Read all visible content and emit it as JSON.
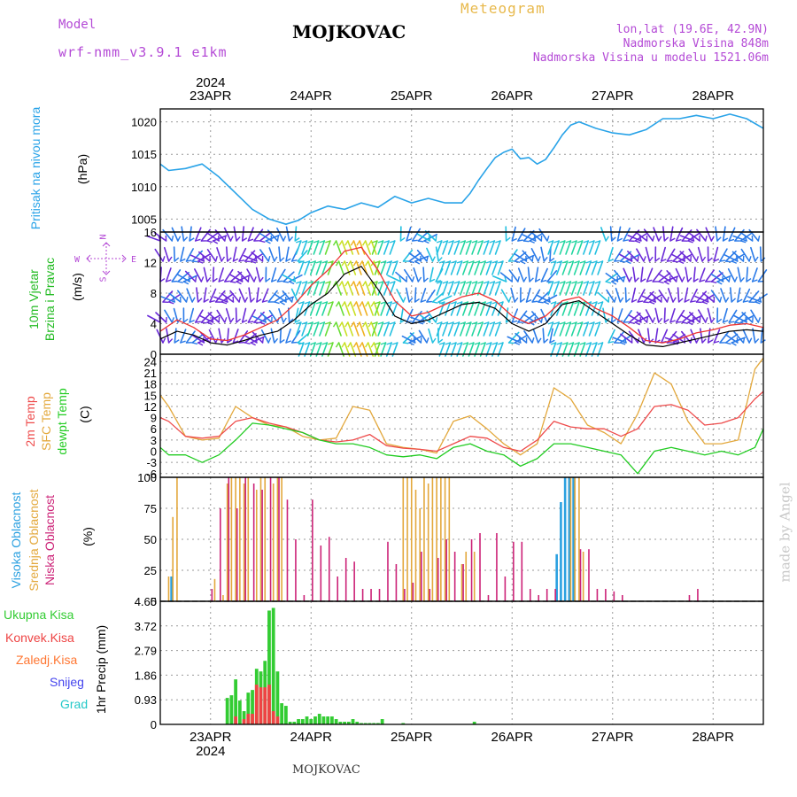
{
  "header": {
    "model_label": "Model",
    "model_name": "wrf-nmm_v3.9.1 e1km",
    "location": "MOJKOVAC",
    "product": "Meteogram",
    "lonlat": "lon,lat (19.6E, 42.9N)",
    "elevation": "Nadmorska Visina 848m",
    "model_elevation": "Nadmorska Visina u modelu 1521.06m"
  },
  "time_axis": {
    "year": "2024",
    "day_labels": [
      "23APR",
      "24APR",
      "25APR",
      "26APR",
      "27APR",
      "28APR"
    ],
    "start": "2024-04-22T12:00",
    "end": "2024-04-28T12:00"
  },
  "panel_labels": {
    "pressure": "Pritisak na nivou mora",
    "pressure_unit": "(hPa)",
    "wind_line1": "10m Vjetar",
    "wind_line2": "Brzina i Pravac",
    "wind_unit": "(m/s)",
    "compass": {
      "n": "N",
      "s": "S",
      "e": "E",
      "w": "W"
    },
    "temp_2m": "2m Temp",
    "temp_sfc": "SFC Temp",
    "temp_dew": "dewpt Temp",
    "temp_unit": "(C)",
    "cloud_high": "Visoka Oblacnost",
    "cloud_mid": "Srednja Oblacnost",
    "cloud_low": "Niska Oblacnost",
    "cloud_unit": "(%)",
    "precip_unit": "1hr Precip (mm)",
    "precip_legend": [
      "Ukupna Kisa",
      "Konvek.Kisa",
      "Zaledj.Kisa",
      "Snijeg",
      "Grad"
    ]
  },
  "credit": "made by Angel",
  "footer_location": "MOJKOVAC",
  "colors": {
    "pressure": "#29a3e8",
    "temp_2m": "#ee4a4a",
    "temp_sfc": "#e3a83c",
    "temp_dew": "#22cc22",
    "wind_speed": "#000000",
    "gust": "#ee3333",
    "cloud_high": "#2aa0e0",
    "cloud_mid": "#e3a83c",
    "cloud_low": "#cc2277",
    "precip_total": "#33cc33",
    "precip_conv": "#ee4444",
    "precip_freezing": "#ff7733",
    "precip_snow": "#4444ee",
    "precip_hail": "#22c8c8",
    "label_pressure": "#29a3e8",
    "label_wind": "#22bb22",
    "label_violet": "#b44ad6"
  },
  "chart_data": [
    {
      "type": "line",
      "name": "pressure",
      "ylabel": "(hPa)",
      "ylim": [
        1003,
        1022
      ],
      "yticks": [
        1005,
        1010,
        1015,
        1020
      ],
      "grid": true,
      "series": [
        {
          "name": "Pritisak na nivou mora",
          "x_hours": [
            0,
            2,
            6,
            10,
            14,
            18,
            22,
            26,
            30,
            33,
            36,
            40,
            44,
            48,
            52,
            56,
            60,
            64,
            68,
            72,
            74,
            76,
            78,
            80,
            82,
            84,
            86,
            88,
            90,
            92,
            94,
            96,
            98,
            100,
            102,
            104,
            108,
            112,
            116,
            120,
            124,
            128,
            132,
            136,
            140,
            144
          ],
          "values": [
            1013.5,
            1012.5,
            1012.8,
            1013.5,
            1011.5,
            1009,
            1006.5,
            1005,
            1004.2,
            1004.8,
            1006,
            1007,
            1006.5,
            1007.5,
            1006.8,
            1008.5,
            1007.5,
            1008.2,
            1007.5,
            1007.5,
            1009,
            1011,
            1012.8,
            1014.5,
            1015.3,
            1015.8,
            1014.3,
            1014.5,
            1013.5,
            1014.2,
            1016,
            1018,
            1019.5,
            1020,
            1019.5,
            1019,
            1018.3,
            1018,
            1018.8,
            1020.5,
            1020.5,
            1021,
            1020.5,
            1021.2,
            1020.5,
            1019
          ]
        }
      ]
    },
    {
      "type": "line",
      "name": "wind",
      "ylabel": "(m/s)",
      "ylim": [
        0,
        16
      ],
      "yticks": [
        0,
        4,
        8,
        12,
        16
      ],
      "grid": true,
      "series": [
        {
          "name": "speed",
          "x_hours": [
            0,
            4,
            8,
            12,
            16,
            20,
            24,
            28,
            32,
            36,
            40,
            44,
            48,
            52,
            56,
            60,
            64,
            68,
            72,
            76,
            80,
            84,
            88,
            92,
            96,
            100,
            104,
            108,
            112,
            116,
            120,
            124,
            128,
            132,
            136,
            140,
            144
          ],
          "values": [
            2,
            3,
            2.5,
            1.5,
            1.2,
            1.8,
            2.5,
            3,
            4.5,
            6.5,
            8,
            10.5,
            11.5,
            8.5,
            5,
            4,
            4.5,
            5.5,
            6.5,
            6.8,
            6,
            4,
            3,
            4,
            6.5,
            7,
            5.5,
            4,
            2.5,
            1.2,
            1,
            1.5,
            2,
            2.5,
            3,
            3.2,
            3
          ]
        },
        {
          "name": "gust",
          "x_hours": [
            0,
            4,
            8,
            12,
            16,
            20,
            24,
            28,
            32,
            36,
            40,
            44,
            48,
            52,
            56,
            60,
            64,
            68,
            72,
            76,
            80,
            84,
            88,
            92,
            96,
            100,
            104,
            108,
            112,
            116,
            120,
            124,
            128,
            132,
            136,
            140,
            144
          ],
          "values": [
            3,
            4.5,
            3.5,
            2,
            1.8,
            2.5,
            3.5,
            4.5,
            6.5,
            9,
            11,
            13.5,
            14,
            11,
            7,
            5,
            5.5,
            6.5,
            7.5,
            8,
            7,
            5,
            4,
            5,
            7,
            7.5,
            6,
            5,
            3.5,
            1.8,
            1.5,
            2,
            2.8,
            3.2,
            3.8,
            4,
            3.5
          ]
        }
      ]
    },
    {
      "type": "line",
      "name": "temperature",
      "ylabel": "(C)",
      "ylim": [
        -7,
        26
      ],
      "yticks": [
        -6,
        -3,
        0,
        3,
        6,
        9,
        12,
        15,
        18,
        21,
        24
      ],
      "grid": true,
      "series": [
        {
          "name": "2m Temp",
          "x_hours": [
            0,
            2,
            6,
            10,
            14,
            18,
            22,
            26,
            30,
            34,
            38,
            42,
            46,
            50,
            54,
            58,
            62,
            66,
            70,
            74,
            78,
            82,
            86,
            90,
            94,
            98,
            102,
            106,
            110,
            114,
            118,
            122,
            126,
            130,
            134,
            138,
            142,
            144
          ],
          "values": [
            9,
            8,
            4,
            3.5,
            4,
            8,
            9,
            7.5,
            6.5,
            5,
            3,
            2.5,
            3,
            4.5,
            1.5,
            0.8,
            0.5,
            0,
            2,
            4,
            3.5,
            1,
            0,
            3,
            8,
            6.5,
            6,
            6,
            4,
            6,
            12,
            12.5,
            11,
            7,
            7.5,
            9,
            14,
            16
          ]
        },
        {
          "name": "SFC Temp",
          "x_hours": [
            0,
            2,
            6,
            10,
            14,
            18,
            22,
            26,
            30,
            34,
            38,
            42,
            46,
            50,
            54,
            58,
            62,
            66,
            70,
            74,
            78,
            82,
            86,
            90,
            94,
            98,
            102,
            106,
            110,
            114,
            118,
            122,
            126,
            130,
            134,
            138,
            142,
            144
          ],
          "values": [
            15,
            12,
            4,
            3,
            3.5,
            12,
            9,
            7,
            6.5,
            4,
            3,
            3.5,
            12,
            11,
            2,
            1,
            0.5,
            -0.5,
            8,
            9.5,
            6,
            2,
            -1,
            2,
            17,
            14,
            7,
            5,
            2,
            10,
            21,
            18,
            8,
            2,
            2,
            3,
            22,
            25
          ]
        },
        {
          "name": "dewpt Temp",
          "x_hours": [
            0,
            2,
            6,
            10,
            14,
            18,
            22,
            26,
            30,
            34,
            38,
            42,
            46,
            50,
            54,
            58,
            62,
            66,
            70,
            74,
            78,
            82,
            86,
            90,
            94,
            98,
            102,
            106,
            110,
            114,
            118,
            122,
            126,
            130,
            134,
            138,
            142,
            144
          ],
          "values": [
            1,
            -1,
            -1,
            -3,
            -1,
            3,
            7.5,
            7,
            6,
            5,
            3,
            2,
            2,
            1,
            -1,
            -1.5,
            -1,
            -2,
            1,
            2,
            0,
            -1,
            -4,
            -2,
            2,
            2,
            1,
            0,
            -1,
            -6,
            0,
            1,
            0,
            -1,
            0,
            -1,
            1,
            6
          ]
        }
      ]
    },
    {
      "type": "bar",
      "name": "cloud_cover",
      "ylabel": "(%)",
      "ylim": [
        0,
        100
      ],
      "yticks": [
        0,
        25,
        50,
        75,
        100
      ],
      "grid": true,
      "series": [
        {
          "name": "Visoka Oblacnost",
          "x_hours": [
            3,
            95,
            96,
            97,
            98,
            99
          ],
          "values": [
            20,
            38,
            80,
            100,
            100,
            100
          ]
        },
        {
          "name": "Srednja Oblacnost",
          "x_hours": [
            2,
            3,
            4,
            13,
            15,
            16,
            17,
            18,
            19,
            20,
            21,
            23,
            24,
            25,
            27,
            28,
            29,
            58,
            59,
            60,
            61,
            62,
            63,
            64,
            65,
            66,
            67,
            68,
            69,
            72,
            73,
            75,
            98,
            99,
            100,
            101
          ],
          "values": [
            20,
            68,
            100,
            18,
            5,
            95,
            100,
            100,
            100,
            95,
            100,
            90,
            100,
            100,
            95,
            100,
            100,
            100,
            100,
            100,
            90,
            75,
            100,
            95,
            100,
            100,
            100,
            100,
            100,
            30,
            40,
            40,
            100,
            100,
            100,
            40
          ]
        },
        {
          "name": "Niska Oblacnost",
          "x_hours": [
            12,
            14,
            16,
            18,
            20,
            22,
            24,
            26,
            28,
            30,
            32,
            34,
            36,
            38,
            40,
            42,
            44,
            46,
            48,
            50,
            52,
            54,
            56,
            58,
            60,
            62,
            64,
            66,
            68,
            70,
            72,
            74,
            76,
            78,
            80,
            82,
            84,
            86,
            88,
            90,
            92,
            94,
            100,
            102,
            104,
            106,
            108,
            110,
            126,
            128
          ],
          "values": [
            10,
            75,
            100,
            75,
            100,
            95,
            90,
            100,
            100,
            82,
            50,
            5,
            82,
            45,
            52,
            20,
            35,
            32,
            10,
            10,
            10,
            48,
            30,
            10,
            15,
            40,
            10,
            35,
            50,
            40,
            30,
            50,
            55,
            5,
            55,
            20,
            48,
            48,
            10,
            5,
            10,
            10,
            42,
            42,
            10,
            10,
            8,
            5,
            5,
            10
          ]
        }
      ]
    },
    {
      "type": "bar",
      "name": "precipitation",
      "ylabel": "1hr Precip (mm)",
      "ylim": [
        0,
        4.65
      ],
      "yticks": [
        0,
        0.93,
        1.86,
        2.79,
        3.72,
        4.65
      ],
      "grid": true,
      "series": [
        {
          "name": "Ukupna Kisa",
          "x_hours": [
            16,
            17,
            18,
            19,
            20,
            21,
            22,
            23,
            24,
            25,
            26,
            27,
            28,
            29,
            30,
            31,
            32,
            33,
            34,
            35,
            36,
            37,
            38,
            39,
            40,
            41,
            42,
            43,
            44,
            45,
            46,
            47,
            48,
            49,
            50,
            51,
            52,
            53,
            58,
            75
          ],
          "values": [
            1.0,
            1.1,
            1.7,
            0.9,
            0.5,
            1.2,
            1.3,
            2.1,
            2.0,
            2.4,
            4.3,
            4.4,
            2.0,
            0.8,
            0.7,
            0.1,
            0.1,
            0.2,
            0.2,
            0.3,
            0.2,
            0.3,
            0.4,
            0.3,
            0.3,
            0.3,
            0.2,
            0.1,
            0.1,
            0.1,
            0.2,
            0.1,
            0.05,
            0.05,
            0.05,
            0.05,
            0.05,
            0.2,
            0.05,
            0.1
          ]
        },
        {
          "name": "Konvek.Kisa",
          "x_hours": [
            18,
            20,
            21,
            22,
            23,
            24,
            25,
            26,
            27,
            28
          ],
          "values": [
            0.3,
            0.2,
            0.4,
            0.4,
            1.5,
            1.4,
            1.4,
            1.5,
            0.5,
            0.3
          ]
        }
      ]
    }
  ]
}
